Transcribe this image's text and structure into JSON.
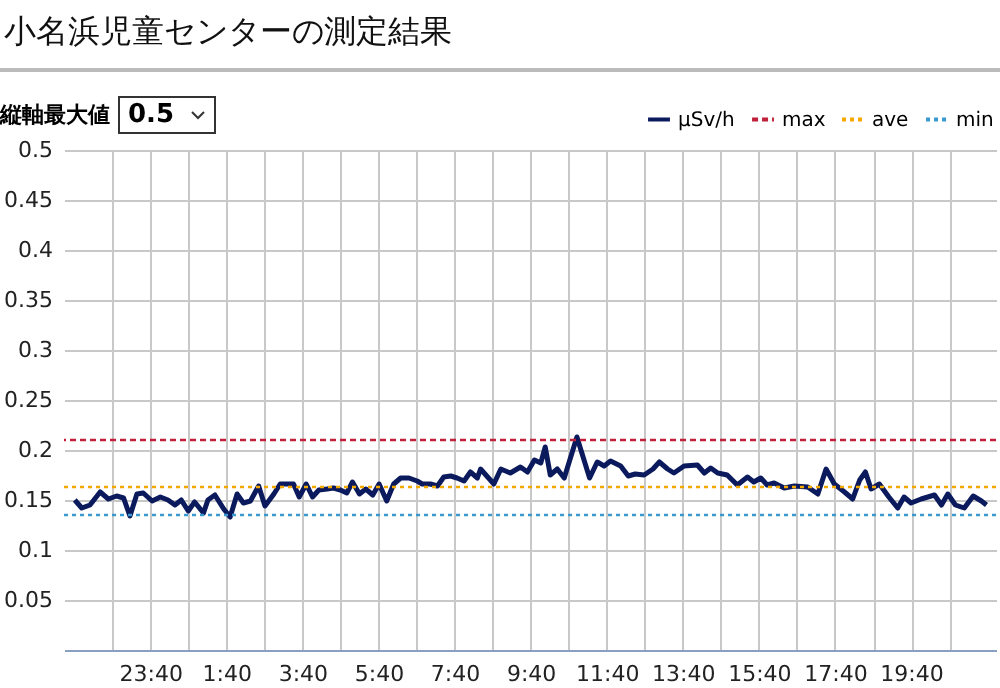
{
  "chart_data": {
    "type": "line",
    "title": "小名浜児童センターの測定結果",
    "annotations": [
      "縦軸最大値",
      "0.5"
    ],
    "x": [
      "--01-01T21:41",
      "--01-01T21:52",
      "--01-01T22:05",
      "--01-01T22:21",
      "--01-01T22:34",
      "--01-01T22:47",
      "--01-01T22:58",
      "--01-01T23:08",
      "--01-01T23:19",
      "--01-01T23:29",
      "--01-01T23:43",
      "--01-01T23:56",
      "--01-02T00:08",
      "--01-02T00:19",
      "--01-02T00:29",
      "--01-02T00:40",
      "--01-02T00:50",
      "--01-02T01:04",
      "--01-02T01:11",
      "--01-02T01:22",
      "--01-02T01:36",
      "--01-02T01:46",
      "--01-02T01:57",
      "--01-02T02:07",
      "--01-02T02:18",
      "--01-02T02:31",
      "--01-02T02:41",
      "--01-02T02:55",
      "--01-02T03:05",
      "--01-02T03:16",
      "--01-02T03:26",
      "--01-02T03:35",
      "--01-02T03:46",
      "--01-02T03:56",
      "--01-02T04:06",
      "--01-02T04:19",
      "--01-02T04:29",
      "--01-02T04:40",
      "--01-02T04:50",
      "--01-02T04:59",
      "--01-02T05:10",
      "--01-02T05:20",
      "--01-02T05:31",
      "--01-02T05:41",
      "--01-02T05:53",
      "--01-02T06:04",
      "--01-02T06:15",
      "--01-02T06:28",
      "--01-02T06:41",
      "--01-02T06:49",
      "--01-02T07:02",
      "--01-02T07:13",
      "--01-02T07:23",
      "--01-02T07:34",
      "--01-02T07:44",
      "--01-02T07:55",
      "--01-02T08:05",
      "--01-02T08:16",
      "--01-02T08:21",
      "--01-02T08:42",
      "--01-02T08:53",
      "--01-02T09:08",
      "--01-02T09:24",
      "--01-02T09:35",
      "--01-02T09:46",
      "--01-02T09:56",
      "--01-02T10:03",
      "--01-02T10:11",
      "--01-02T10:22",
      "--01-02T10:33",
      "--01-02T10:53",
      "--01-02T11:13",
      "--01-02T11:25",
      "--01-02T11:36",
      "--01-02T11:46",
      "--01-02T12:02",
      "--01-02T12:14",
      "--01-02T12:25",
      "--01-02T12:39",
      "--01-02T12:53",
      "--01-02T13:03",
      "--01-02T13:16",
      "--01-02T13:26",
      "--01-02T13:42",
      "--01-02T14:03",
      "--01-02T14:14",
      "--01-02T14:24",
      "--01-02T14:35",
      "--01-02T14:50",
      "--01-02T15:06",
      "--01-02T15:22",
      "--01-02T15:32",
      "--01-02T15:43",
      "--01-02T15:53",
      "--01-02T16:04",
      "--01-02T16:20",
      "--01-02T16:36",
      "--01-02T16:57",
      "--01-02T17:13",
      "--01-02T17:26",
      "--01-02T17:39",
      "--01-02T17:55",
      "--01-02T18:08",
      "--01-02T18:19",
      "--01-02T18:28",
      "--01-02T18:37",
      "--01-02T18:50",
      "--01-02T19:05",
      "--01-02T19:19",
      "--01-02T19:29",
      "--01-02T19:40",
      "--01-02T19:56",
      "--01-02T20:17",
      "--01-02T20:28",
      "--01-02T20:38",
      "--01-02T20:50",
      "--01-02T21:04",
      "--01-02T21:18",
      "--01-02T21:31",
      "--01-02T21:39"
    ],
    "series": [
      {
        "name": "μSv/h",
        "color": "#0b1a5c",
        "line_style": "solid",
        "values": [
          0.15,
          0.142,
          0.145,
          0.158,
          0.151,
          0.154,
          0.152,
          0.134,
          0.156,
          0.157,
          0.149,
          0.153,
          0.15,
          0.145,
          0.15,
          0.139,
          0.148,
          0.137,
          0.15,
          0.155,
          0.141,
          0.133,
          0.156,
          0.147,
          0.149,
          0.164,
          0.144,
          0.156,
          0.166,
          0.166,
          0.166,
          0.153,
          0.166,
          0.153,
          0.16,
          0.161,
          0.162,
          0.16,
          0.157,
          0.168,
          0.156,
          0.161,
          0.155,
          0.166,
          0.149,
          0.166,
          0.172,
          0.172,
          0.169,
          0.166,
          0.166,
          0.164,
          0.173,
          0.174,
          0.172,
          0.169,
          0.178,
          0.172,
          0.181,
          0.166,
          0.181,
          0.177,
          0.183,
          0.178,
          0.19,
          0.187,
          0.203,
          0.175,
          0.181,
          0.172,
          0.213,
          0.172,
          0.188,
          0.184,
          0.189,
          0.184,
          0.174,
          0.176,
          0.175,
          0.181,
          0.188,
          0.181,
          0.177,
          0.184,
          0.185,
          0.177,
          0.182,
          0.177,
          0.175,
          0.165,
          0.173,
          0.168,
          0.172,
          0.165,
          0.167,
          0.162,
          0.164,
          0.163,
          0.156,
          0.181,
          0.166,
          0.158,
          0.151,
          0.17,
          0.178,
          0.161,
          0.166,
          0.153,
          0.142,
          0.153,
          0.147,
          0.151,
          0.155,
          0.145,
          0.156,
          0.145,
          0.142,
          0.154,
          0.149,
          0.145
        ]
      }
    ],
    "ref_lines": [
      {
        "axis": "y",
        "value": 0.21,
        "label": "max",
        "color": "#c0203a",
        "line_style": "dashed"
      },
      {
        "axis": "y",
        "value": 0.163,
        "label": "ave",
        "color": "#f5a800",
        "line_style": "dotted"
      },
      {
        "axis": "y",
        "value": 0.135,
        "label": "min",
        "color": "#3a9ad0",
        "line_style": "dotted"
      }
    ],
    "xlim": [
      "--01-01T21:24",
      "--01-02T21:54"
    ],
    "xticks": [
      {
        "value": "--01-01T22:40",
        "label": null
      },
      {
        "value": "--01-01T23:40",
        "label": "23:40"
      },
      {
        "value": "--01-02T00:40",
        "label": null
      },
      {
        "value": "--01-02T01:40",
        "label": "1:40"
      },
      {
        "value": "--01-02T02:40",
        "label": null
      },
      {
        "value": "--01-02T03:40",
        "label": "3:40"
      },
      {
        "value": "--01-02T04:40",
        "label": null
      },
      {
        "value": "--01-02T05:40",
        "label": "5:40"
      },
      {
        "value": "--01-02T06:40",
        "label": null
      },
      {
        "value": "--01-02T07:40",
        "label": "7:40"
      },
      {
        "value": "--01-02T08:40",
        "label": null
      },
      {
        "value": "--01-02T09:40",
        "label": "9:40"
      },
      {
        "value": "--01-02T10:40",
        "label": null
      },
      {
        "value": "--01-02T11:40",
        "label": "11:40"
      },
      {
        "value": "--01-02T12:40",
        "label": null
      },
      {
        "value": "--01-02T13:40",
        "label": "13:40"
      },
      {
        "value": "--01-02T14:40",
        "label": null
      },
      {
        "value": "--01-02T15:40",
        "label": "15:40"
      },
      {
        "value": "--01-02T16:40",
        "label": null
      },
      {
        "value": "--01-02T17:40",
        "label": "17:40"
      },
      {
        "value": "--01-02T18:40",
        "label": null
      },
      {
        "value": "--01-02T19:40",
        "label": "19:40"
      },
      {
        "value": "--01-02T20:40",
        "label": null
      }
    ],
    "ylim": [
      0,
      0.5
    ],
    "yticks": [
      {
        "value": 0,
        "label": null
      },
      0.05,
      0.1,
      0.15,
      0.2,
      0.25,
      0.3,
      0.35,
      0.4,
      0.45,
      0.5
    ],
    "grid": true,
    "legend": "top right",
    "marker": "none"
  }
}
